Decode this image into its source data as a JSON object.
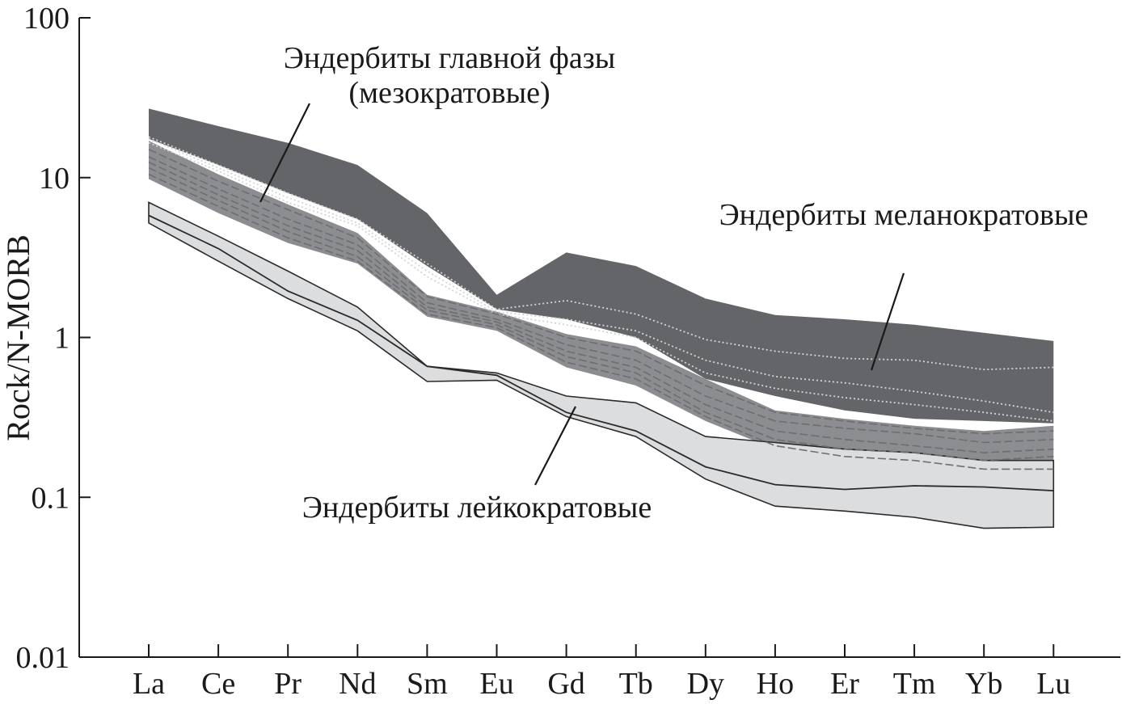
{
  "chart_data": {
    "type": "line",
    "ylabel": "Rock/N-MORB",
    "yscale": "log",
    "ylim": [
      0.01,
      100
    ],
    "yticks": [
      {
        "value": 100,
        "label": "100"
      },
      {
        "value": 10,
        "label": "10"
      },
      {
        "value": 1,
        "label": "1"
      },
      {
        "value": 0.1,
        "label": "0.1"
      },
      {
        "value": 0.01,
        "label": "0.01"
      }
    ],
    "categories": [
      "La",
      "Ce",
      "Pr",
      "Nd",
      "Sm",
      "Eu",
      "Gd",
      "Tb",
      "Dy",
      "Ho",
      "Er",
      "Tm",
      "Yb",
      "Lu"
    ],
    "grid": false,
    "colors": {
      "melanocratic": "#646569",
      "mesocratic": "#8c8d90",
      "leucocratic": "#dcdddf",
      "dark_line": "#2a2a2a",
      "dash_line": "#6e6e70",
      "dotted_line": "#d4d4d4"
    },
    "fields": [
      {
        "name": "Эндербиты меланократовые",
        "upper": [
          27,
          21,
          16.5,
          12,
          6,
          1.85,
          3.4,
          2.8,
          1.75,
          1.38,
          1.3,
          1.2,
          1.07,
          0.95
        ],
        "lower": [
          17.5,
          12,
          8,
          5.5,
          2.8,
          1.5,
          1.3,
          1.0,
          0.55,
          0.43,
          0.35,
          0.31,
          0.3,
          0.29
        ]
      },
      {
        "name": "Эндербиты главной фазы (мезократовые)",
        "upper": [
          17,
          10.5,
          6.8,
          4.5,
          1.85,
          1.45,
          1.05,
          0.88,
          0.55,
          0.35,
          0.31,
          0.28,
          0.26,
          0.28
        ],
        "lower": [
          9.8,
          6,
          3.9,
          2.9,
          1.35,
          1.1,
          0.65,
          0.5,
          0.3,
          0.2,
          0.17,
          0.16,
          0.14,
          0.13
        ]
      },
      {
        "name": "Эндербиты лейкократовые",
        "upper": [
          7,
          4.3,
          2.6,
          1.55,
          0.66,
          0.6,
          0.43,
          0.39,
          0.24,
          0.22,
          0.2,
          0.19,
          0.17,
          0.17
        ],
        "lower": [
          5.2,
          3.0,
          1.75,
          1.1,
          0.53,
          0.54,
          0.32,
          0.24,
          0.13,
          0.088,
          0.082,
          0.075,
          0.064,
          0.065
        ]
      }
    ],
    "series": [
      {
        "field": 0,
        "style": "dotted",
        "values": [
          18,
          12,
          8,
          5.5,
          2.9,
          1.5,
          1.7,
          1.4,
          0.97,
          0.82,
          0.74,
          0.72,
          0.63,
          0.65
        ]
      },
      {
        "field": 0,
        "style": "dotted",
        "values": [
          17.5,
          11.5,
          7.5,
          5.2,
          2.6,
          1.45,
          1.3,
          1.1,
          0.72,
          0.57,
          0.52,
          0.46,
          0.4,
          0.34
        ]
      },
      {
        "field": 0,
        "style": "dotted",
        "values": [
          16.5,
          11,
          7,
          5.0,
          2.4,
          1.4,
          1.2,
          1.0,
          0.6,
          0.48,
          0.42,
          0.38,
          0.34,
          0.3
        ]
      },
      {
        "field": 1,
        "style": "dashed",
        "values": [
          15,
          9.5,
          6.3,
          4.2,
          1.8,
          1.4,
          1.0,
          0.82,
          0.5,
          0.34,
          0.3,
          0.27,
          0.25,
          0.26
        ]
      },
      {
        "field": 1,
        "style": "dashed",
        "values": [
          13.5,
          8.5,
          5.5,
          3.8,
          1.65,
          1.3,
          0.9,
          0.72,
          0.43,
          0.3,
          0.27,
          0.25,
          0.22,
          0.23
        ]
      },
      {
        "field": 1,
        "style": "dashed",
        "values": [
          12.5,
          7.8,
          5.0,
          3.5,
          1.55,
          1.25,
          0.82,
          0.65,
          0.38,
          0.26,
          0.23,
          0.21,
          0.19,
          0.2
        ]
      },
      {
        "field": 1,
        "style": "dashed",
        "values": [
          11.5,
          7.2,
          4.6,
          3.2,
          1.48,
          1.2,
          0.76,
          0.6,
          0.34,
          0.23,
          0.2,
          0.19,
          0.17,
          0.18
        ]
      },
      {
        "field": 1,
        "style": "dashed",
        "values": [
          10.5,
          6.6,
          4.2,
          3.0,
          1.4,
          1.15,
          0.7,
          0.55,
          0.32,
          0.21,
          0.18,
          0.17,
          0.15,
          0.15
        ]
      },
      {
        "field": 2,
        "style": "solid",
        "values": [
          5.8,
          3.6,
          1.95,
          1.28,
          0.66,
          0.58,
          0.34,
          0.26,
          0.155,
          0.12,
          0.112,
          0.118,
          0.116,
          0.11
        ]
      }
    ],
    "annotations": [
      {
        "lines": [
          "Эндербиты главной фазы",
          "(мезократовые)"
        ]
      },
      {
        "lines": [
          "Эндербиты меланократовые"
        ]
      },
      {
        "lines": [
          "Эндербиты лейкократовые"
        ]
      }
    ]
  }
}
